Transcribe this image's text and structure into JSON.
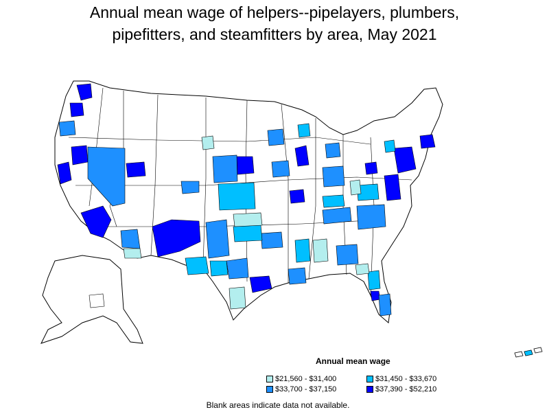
{
  "title_line1": "Annual mean wage of helpers--pipelayers, plumbers,",
  "title_line2": "pipefitters, and steamfitters by area, May 2021",
  "legend": {
    "title": "Annual mean wage",
    "items": [
      {
        "label": "$21,560 - $31,400",
        "color": "#b3eeee"
      },
      {
        "label": "$31,450 - $33,670",
        "color": "#00bfff"
      },
      {
        "label": "$33,700 - $37,150",
        "color": "#1e90ff"
      },
      {
        "label": "$37,390 - $52,210",
        "color": "#0000ff"
      }
    ]
  },
  "note": "Blank areas indicate data not available.",
  "colors": {
    "tier1": "#b3eeee",
    "tier2": "#00bfff",
    "tier3": "#1e90ff",
    "tier4": "#0000ff",
    "no_data": "#ffffff",
    "border": "#000000"
  }
}
